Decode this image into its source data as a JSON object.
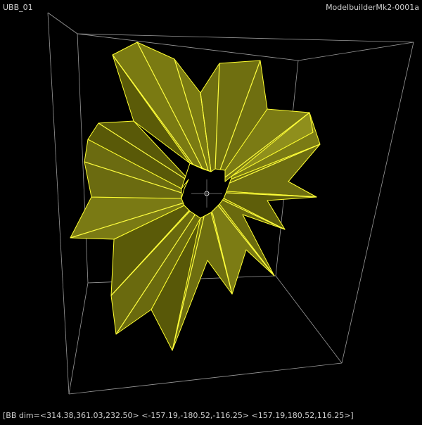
{
  "viewport": {
    "name_label": "UBB_01",
    "version_label": "ModelbuilderMk2-0001a",
    "bb_readout": "[BB dim=<314.38,361.03,232.50> <-157.19,-180.52,-116.25> <157.19,180.52,116.25>]"
  },
  "colors": {
    "background": "#000000",
    "bounding_box": "#9a9a9a",
    "mesh_fill_dark": "#3e3e00",
    "mesh_fill_mid": "#6b6b10",
    "mesh_fill_light": "#8b8b1a",
    "mesh_edge": "#ffff30",
    "hud_text": "#cfcfcf"
  },
  "icons": {
    "origin_marker": "circle-crosshair-icon"
  }
}
